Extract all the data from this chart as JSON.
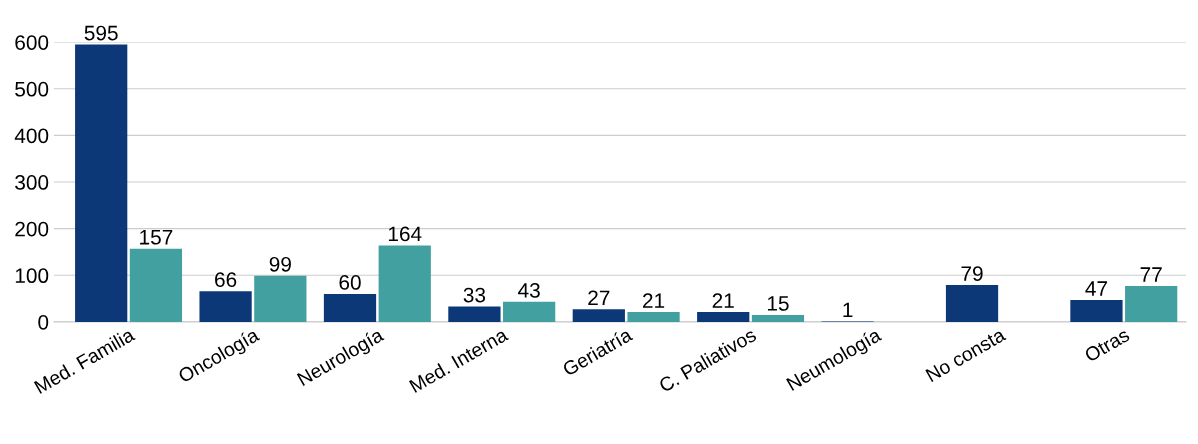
{
  "chart_data": {
    "type": "bar",
    "categories": [
      "Med. Familia",
      "Oncología",
      "Neurología",
      "Med. Interna",
      "Geriatría",
      "C. Paliativos",
      "Neumología",
      "No consta",
      "Otras"
    ],
    "series": [
      {
        "color": "#0d3878",
        "values": [
          595,
          66,
          60,
          33,
          27,
          21,
          1,
          79,
          47
        ]
      },
      {
        "color": "#43a0a0",
        "values": [
          157,
          99,
          164,
          43,
          21,
          15,
          null,
          null,
          77
        ]
      }
    ],
    "ylim": [
      0,
      600
    ],
    "yticks": [
      0,
      100,
      200,
      300,
      400,
      500,
      600
    ],
    "grid": "y",
    "data_labels": true,
    "legend": false
  }
}
